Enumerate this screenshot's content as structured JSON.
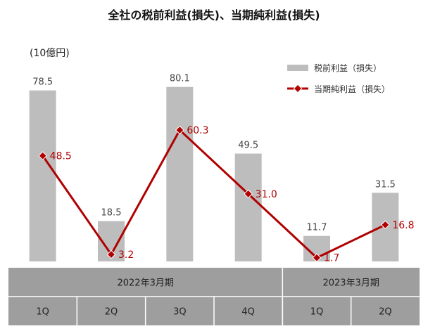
{
  "chart_data": {
    "type": "bar",
    "title": "全社の税前利益(損失)、当期純利益(損失)",
    "unit_label": "(10億円)",
    "categories": [
      "1Q",
      "2Q",
      "3Q",
      "4Q",
      "1Q",
      "2Q"
    ],
    "period_groups": [
      {
        "label": "2022年3月期",
        "count": 4
      },
      {
        "label": "2023年3月期",
        "count": 2
      }
    ],
    "series": [
      {
        "name": "税前利益（損失）",
        "type": "bar",
        "color": "#bdbdbd",
        "values": [
          78.5,
          18.5,
          80.1,
          49.5,
          11.7,
          31.5
        ],
        "value_labels": [
          "78.5",
          "18.5",
          "80.1",
          "49.5",
          "11.7",
          "31.5"
        ]
      },
      {
        "name": "当期純利益（損失）",
        "type": "line",
        "color": "#b00000",
        "values": [
          48.5,
          3.2,
          60.3,
          31.0,
          1.7,
          16.8
        ],
        "value_labels": [
          "48.5",
          "3.2",
          "60.3",
          "31.0",
          "1.7",
          "16.8"
        ]
      }
    ],
    "ylim": [
      0,
      90
    ],
    "legend": "top-right",
    "grid": false
  }
}
